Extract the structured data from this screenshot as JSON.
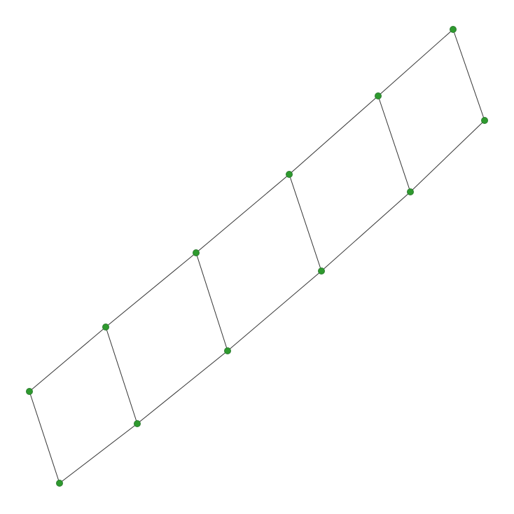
{
  "colors": {
    "background": "#ffffff",
    "node_fill": "#2e9a2e",
    "edge_stroke": "#333333"
  },
  "graph": {
    "type": "ladder",
    "node_count": 12,
    "edge_count": 16,
    "nodes": [
      "n1",
      "n2",
      "n3",
      "n4",
      "n5",
      "n6",
      "n7",
      "n8",
      "n9",
      "n10",
      "n11",
      "n12"
    ],
    "edges": [
      [
        "n1",
        "n2"
      ],
      [
        "n2",
        "n3"
      ],
      [
        "n3",
        "n4"
      ],
      [
        "n4",
        "n5"
      ],
      [
        "n5",
        "n6"
      ],
      [
        "n7",
        "n8"
      ],
      [
        "n8",
        "n9"
      ],
      [
        "n9",
        "n10"
      ],
      [
        "n10",
        "n11"
      ],
      [
        "n11",
        "n12"
      ],
      [
        "n1",
        "n7"
      ],
      [
        "n2",
        "n8"
      ],
      [
        "n3",
        "n9"
      ],
      [
        "n4",
        "n10"
      ],
      [
        "n5",
        "n11"
      ],
      [
        "n6",
        "n12"
      ]
    ]
  }
}
